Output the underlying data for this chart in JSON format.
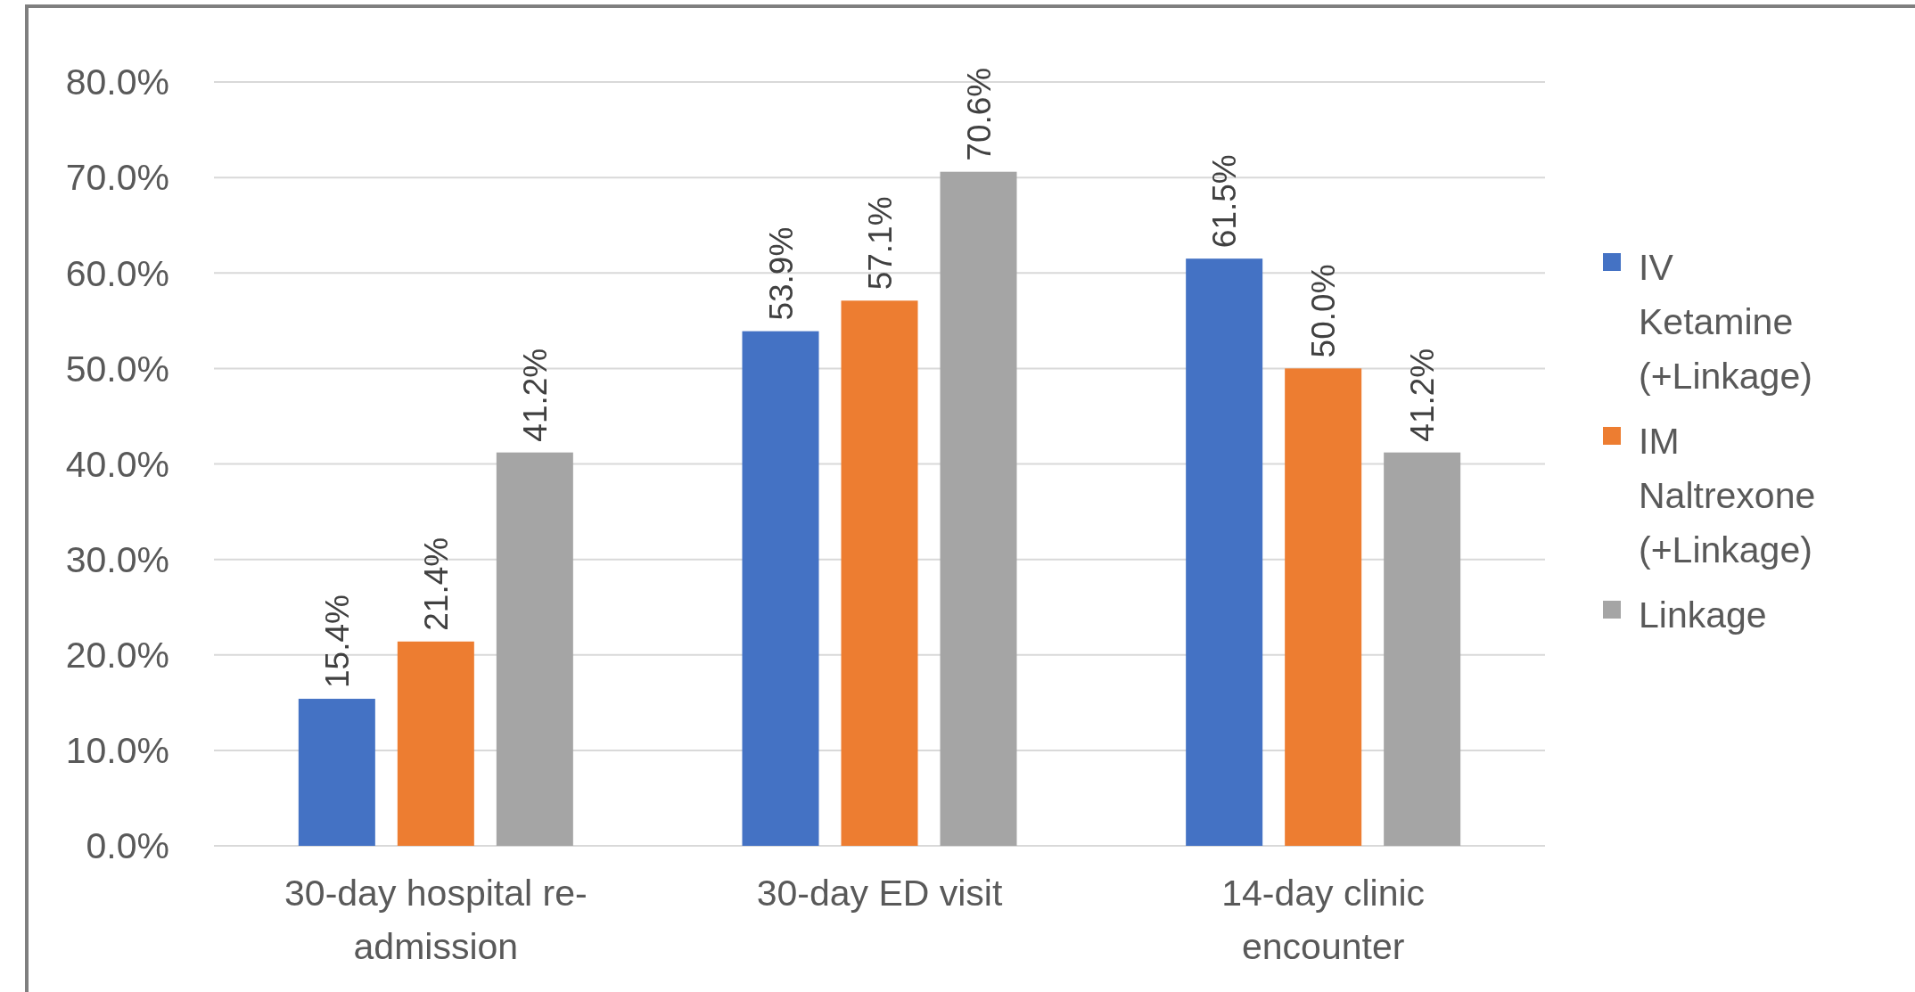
{
  "chart_data": {
    "type": "bar",
    "categories": [
      "30-day hospital re-admission",
      "30-day ED visit",
      "14-day clinic encounter"
    ],
    "series": [
      {
        "name": "IV Ketamine (+Linkage)",
        "color": "#4472c4",
        "values": [
          15.4,
          53.9,
          61.5
        ],
        "value_labels": [
          "15.4%",
          "53.9%",
          "61.5%"
        ]
      },
      {
        "name": "IM Naltrexone (+Linkage)",
        "color": "#ed7d31",
        "values": [
          21.4,
          57.1,
          50.0
        ],
        "value_labels": [
          "21.4%",
          "57.1%",
          "50.0%"
        ]
      },
      {
        "name": "Linkage",
        "color": "#a5a5a5",
        "values": [
          41.2,
          70.6,
          41.2
        ],
        "value_labels": [
          "41.2%",
          "70.6%",
          "41.2%"
        ]
      }
    ],
    "ylim": [
      0,
      80
    ],
    "yticks": [
      {
        "value": 0,
        "label": "0.0%"
      },
      {
        "value": 10,
        "label": "10.0%"
      },
      {
        "value": 20,
        "label": "20.0%"
      },
      {
        "value": 30,
        "label": "30.0%"
      },
      {
        "value": 40,
        "label": "40.0%"
      },
      {
        "value": 50,
        "label": "50.0%"
      },
      {
        "value": 60,
        "label": "60.0%"
      },
      {
        "value": 70,
        "label": "70.0%"
      },
      {
        "value": 80,
        "label": "80.0%"
      }
    ],
    "grid": "y",
    "legend": "right"
  }
}
